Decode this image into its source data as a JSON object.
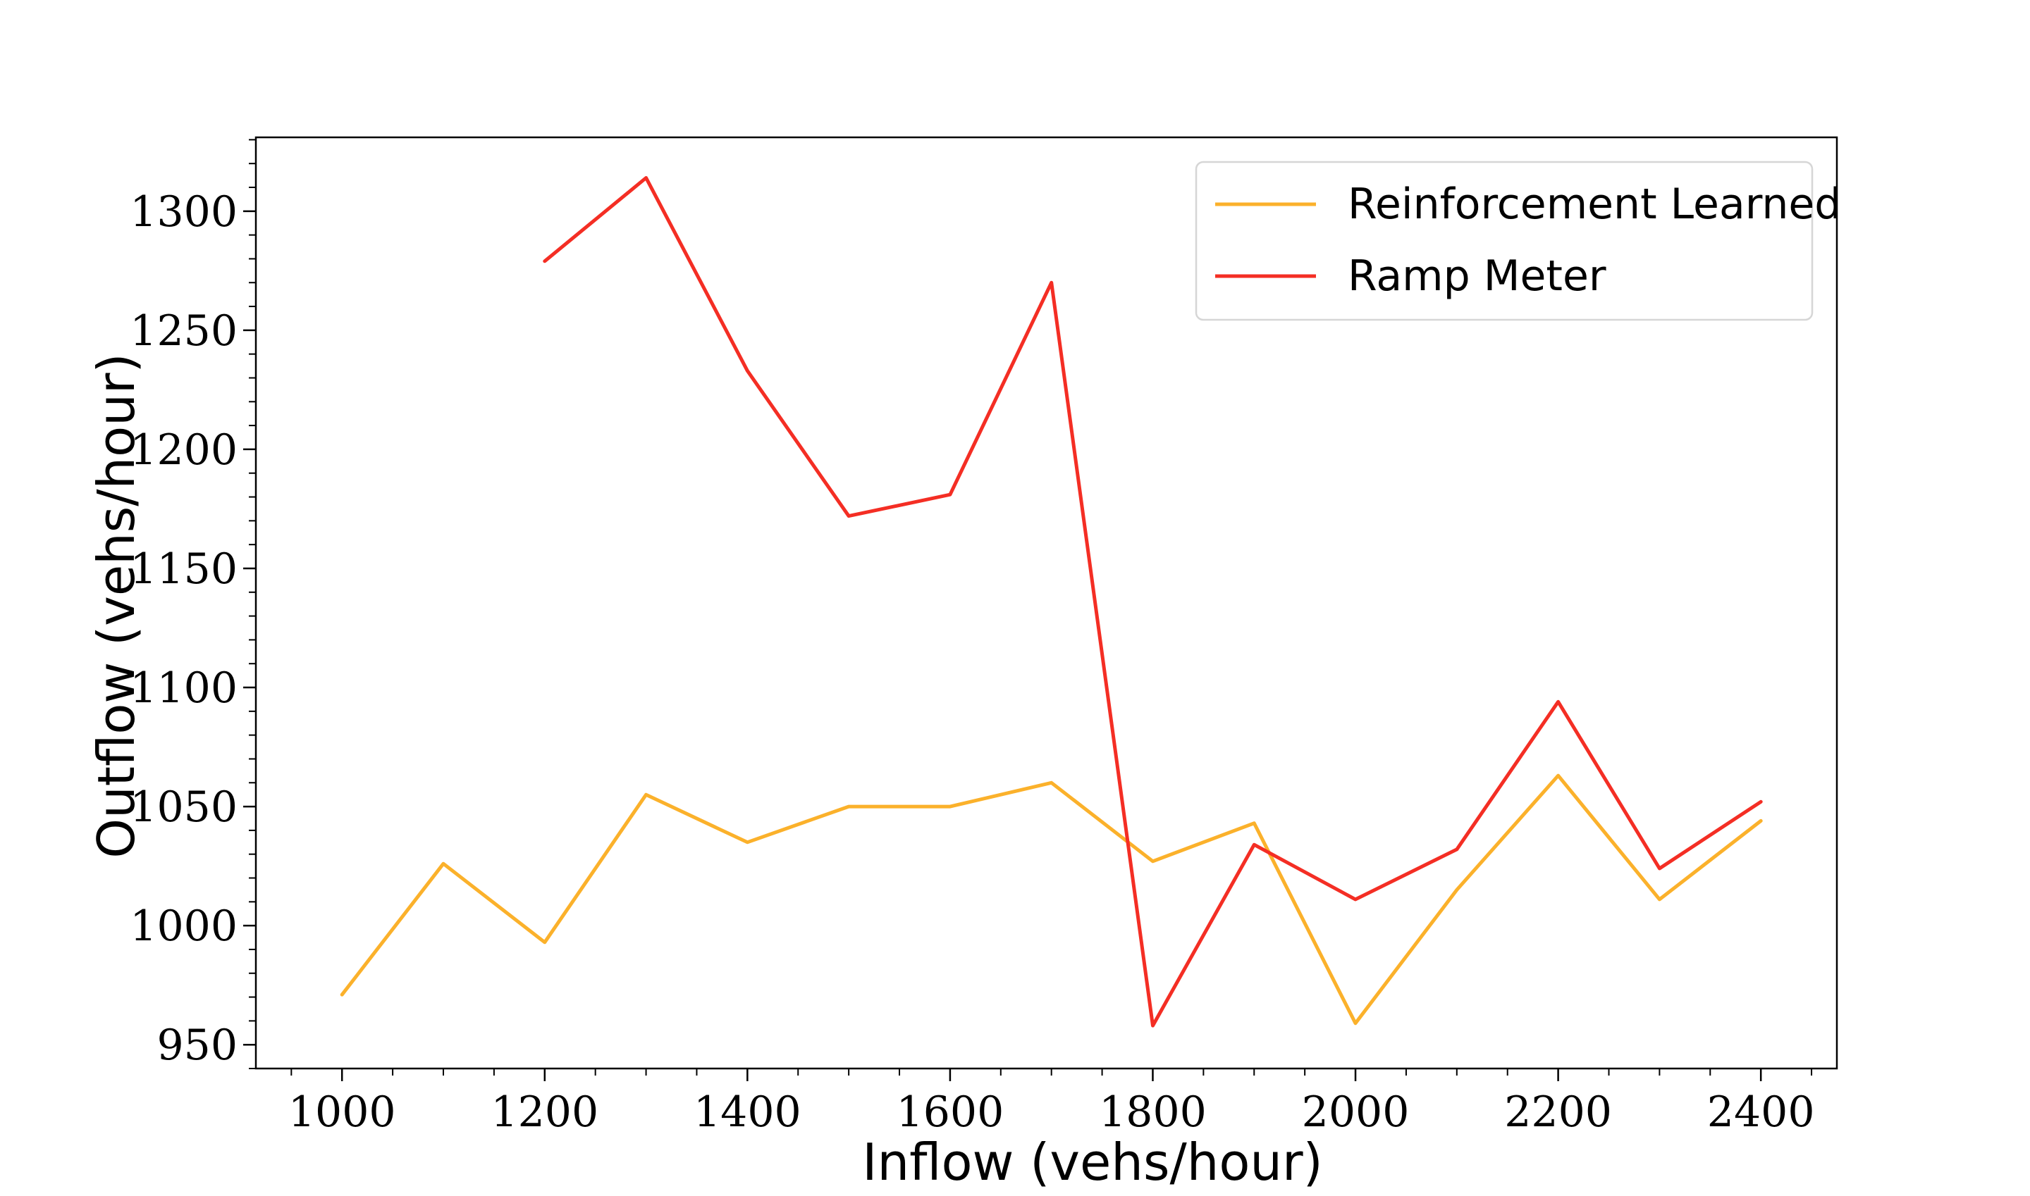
{
  "chart_data": {
    "type": "line",
    "title": "",
    "xlabel": "Inflow (vehs/hour)",
    "ylabel": "Outflow (vehs/hour)",
    "xlim": [
      915,
      2475
    ],
    "ylim": [
      940,
      1331
    ],
    "x_ticks": [
      1000,
      1200,
      1400,
      1600,
      1800,
      2000,
      2200,
      2400
    ],
    "y_ticks": [
      950,
      1000,
      1050,
      1100,
      1150,
      1200,
      1250,
      1300
    ],
    "x_minor_step": 50,
    "y_minor_step": 10,
    "grid": false,
    "legend_position": "top-right",
    "series": [
      {
        "name": "Reinforcement Learned",
        "color": "#FBB12B",
        "x": [
          1000,
          1100,
          1200,
          1300,
          1400,
          1500,
          1600,
          1700,
          1800,
          1900,
          2000,
          2100,
          2200,
          2300,
          2400
        ],
        "values": [
          971,
          1026,
          993,
          1055,
          1035,
          1050,
          1050,
          1060,
          1027,
          1043,
          959,
          1015,
          1063,
          1011,
          1044
        ]
      },
      {
        "name": "Ramp Meter",
        "color": "#F42E24",
        "x": [
          1200,
          1300,
          1400,
          1500,
          1600,
          1700,
          1800,
          1900,
          2000,
          2100,
          2200,
          2300,
          2400
        ],
        "values": [
          1279,
          1314,
          1233,
          1172,
          1181,
          1270,
          958,
          1034,
          1011,
          1032,
          1094,
          1024,
          1052
        ]
      }
    ]
  }
}
